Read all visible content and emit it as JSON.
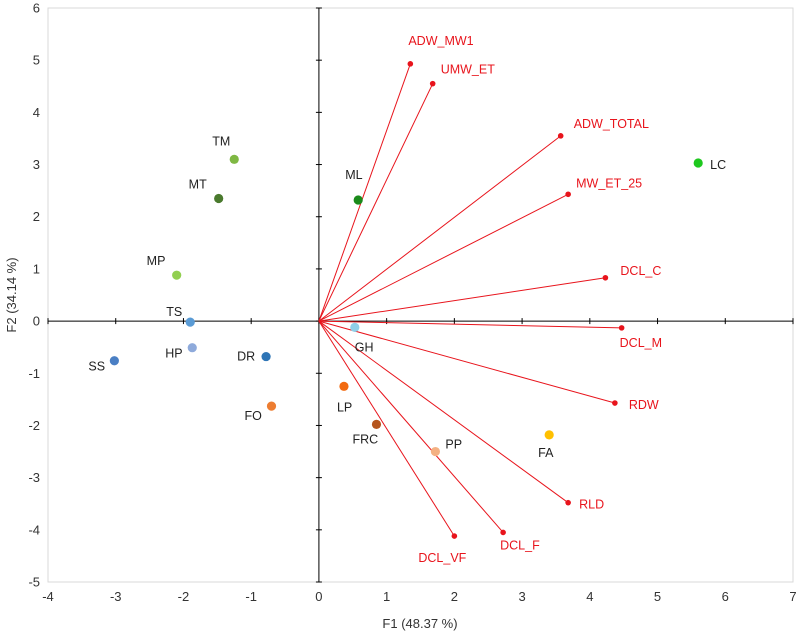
{
  "chart_data": {
    "type": "scatter",
    "title": "",
    "xlabel": "F1 (48.37 %)",
    "ylabel": "F2 (34.14 %)",
    "xlim": [
      -4,
      7
    ],
    "ylim": [
      -5,
      6
    ],
    "xticks": [
      -4,
      -3,
      -2,
      -1,
      0,
      1,
      2,
      3,
      4,
      5,
      6,
      7
    ],
    "yticks": [
      -5,
      -4,
      -3,
      -2,
      -1,
      0,
      1,
      2,
      3,
      4,
      5,
      6
    ],
    "vector_color": "#e8141c",
    "observation_label_color": "#222222",
    "vectors": [
      {
        "name": "ADW_MW1",
        "x": 1.35,
        "y": 4.93
      },
      {
        "name": "UMW_ET",
        "x": 1.68,
        "y": 4.55
      },
      {
        "name": "ADW_TOTAL",
        "x": 3.57,
        "y": 3.55
      },
      {
        "name": "MW_ET_25",
        "x": 3.68,
        "y": 2.43
      },
      {
        "name": "DCL_C",
        "x": 4.23,
        "y": 0.83
      },
      {
        "name": "DCL_M",
        "x": 4.47,
        "y": -0.13
      },
      {
        "name": "RDW",
        "x": 4.37,
        "y": -1.57
      },
      {
        "name": "RLD",
        "x": 3.68,
        "y": -3.48
      },
      {
        "name": "DCL_F",
        "x": 2.72,
        "y": -4.05
      },
      {
        "name": "DCL_VF",
        "x": 2.0,
        "y": -4.12
      }
    ],
    "observations": [
      {
        "name": "LC",
        "x": 5.6,
        "y": 3.03,
        "color": "#1ec81e"
      },
      {
        "name": "ML",
        "x": 0.58,
        "y": 2.32,
        "color": "#1a8a1a"
      },
      {
        "name": "TM",
        "x": -1.25,
        "y": 3.1,
        "color": "#7fb843"
      },
      {
        "name": "MT",
        "x": -1.48,
        "y": 2.35,
        "color": "#4a7a2e"
      },
      {
        "name": "MP",
        "x": -2.1,
        "y": 0.88,
        "color": "#92cf50"
      },
      {
        "name": "TS",
        "x": -1.9,
        "y": -0.02,
        "color": "#5a9bd5"
      },
      {
        "name": "HP",
        "x": -1.87,
        "y": -0.51,
        "color": "#8eaadb"
      },
      {
        "name": "SS",
        "x": -3.02,
        "y": -0.76,
        "color": "#4a7fc4"
      },
      {
        "name": "DR",
        "x": -0.78,
        "y": -0.68,
        "color": "#2e75b6"
      },
      {
        "name": "GH",
        "x": 0.53,
        "y": -0.12,
        "color": "#8fcfe8"
      },
      {
        "name": "FO",
        "x": -0.7,
        "y": -1.63,
        "color": "#ed7d31"
      },
      {
        "name": "LP",
        "x": 0.37,
        "y": -1.25,
        "color": "#f26a10"
      },
      {
        "name": "FRC",
        "x": 0.85,
        "y": -1.98,
        "color": "#b5561e"
      },
      {
        "name": "PP",
        "x": 1.72,
        "y": -2.5,
        "color": "#f4b183"
      },
      {
        "name": "FA",
        "x": 3.4,
        "y": -2.18,
        "color": "#ffc000"
      }
    ]
  }
}
